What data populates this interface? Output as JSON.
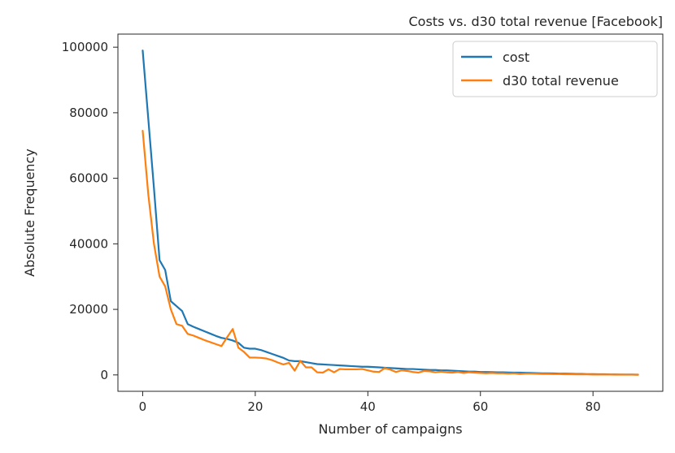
{
  "chart_data": {
    "type": "line",
    "title": "Costs vs. d30 total revenue [Facebook]",
    "xlabel": "Number of campaigns",
    "ylabel": "Absolute Frequency",
    "xlim": [
      -4.4,
      92.4
    ],
    "ylim": [
      -5000,
      104000
    ],
    "x_ticks": [
      0,
      20,
      40,
      60,
      80
    ],
    "y_ticks": [
      0,
      20000,
      40000,
      60000,
      80000,
      100000
    ],
    "x_tick_labels": [
      "0",
      "20",
      "40",
      "60",
      "80"
    ],
    "y_tick_labels": [
      "0",
      "20000",
      "40000",
      "60000",
      "80000",
      "100000"
    ],
    "legend_position": "top-right",
    "grid": false,
    "x": [
      0,
      1,
      2,
      3,
      4,
      5,
      6,
      7,
      8,
      9,
      10,
      11,
      12,
      13,
      14,
      15,
      16,
      17,
      18,
      19,
      20,
      21,
      22,
      23,
      24,
      25,
      26,
      27,
      28,
      29,
      30,
      31,
      32,
      33,
      34,
      35,
      36,
      37,
      38,
      39,
      40,
      41,
      42,
      43,
      44,
      45,
      46,
      47,
      48,
      49,
      50,
      51,
      52,
      53,
      54,
      55,
      56,
      57,
      58,
      59,
      60,
      61,
      62,
      63,
      64,
      65,
      66,
      67,
      68,
      69,
      70,
      71,
      72,
      73,
      74,
      75,
      76,
      77,
      78,
      79,
      80,
      81,
      82,
      83,
      84,
      85,
      86,
      87,
      88
    ],
    "series": [
      {
        "name": "cost",
        "color": "#1f77b4",
        "values": [
          99000,
          78000,
          57000,
          35000,
          32000,
          22500,
          21000,
          19500,
          15500,
          14700,
          14000,
          13300,
          12600,
          11900,
          11300,
          11000,
          10500,
          9800,
          8300,
          8000,
          8000,
          7600,
          7000,
          6400,
          5800,
          5200,
          4400,
          4200,
          4200,
          3900,
          3600,
          3300,
          3200,
          3100,
          3000,
          2900,
          2800,
          2700,
          2600,
          2500,
          2500,
          2400,
          2300,
          2200,
          2100,
          2000,
          1900,
          1800,
          1800,
          1700,
          1600,
          1500,
          1500,
          1400,
          1400,
          1300,
          1200,
          1100,
          1000,
          1000,
          900,
          900,
          850,
          800,
          800,
          750,
          700,
          700,
          650,
          600,
          550,
          500,
          500,
          450,
          400,
          400,
          350,
          300,
          300,
          250,
          250,
          200,
          200,
          150,
          150,
          100,
          100,
          100,
          80
        ]
      },
      {
        "name": "d30 total revenue",
        "color": "#ff7f0e",
        "values": [
          74500,
          55000,
          40000,
          30000,
          27000,
          20000,
          15500,
          15000,
          12500,
          12000,
          11300,
          10600,
          10000,
          9400,
          8800,
          11500,
          14000,
          8300,
          7000,
          5300,
          5300,
          5200,
          5000,
          4500,
          3800,
          3200,
          3700,
          1300,
          4300,
          2300,
          2300,
          800,
          700,
          1700,
          800,
          1800,
          1700,
          1700,
          1700,
          1800,
          1400,
          1000,
          900,
          2100,
          1600,
          900,
          1400,
          1200,
          900,
          700,
          1200,
          1100,
          800,
          1000,
          800,
          700,
          900,
          600,
          800,
          700,
          600,
          500,
          600,
          500,
          500,
          400,
          500,
          300,
          400,
          400,
          350,
          300,
          300,
          250,
          250,
          200,
          200,
          150,
          150,
          150,
          100,
          100,
          100,
          100,
          80,
          80,
          60,
          60,
          50
        ]
      }
    ]
  }
}
